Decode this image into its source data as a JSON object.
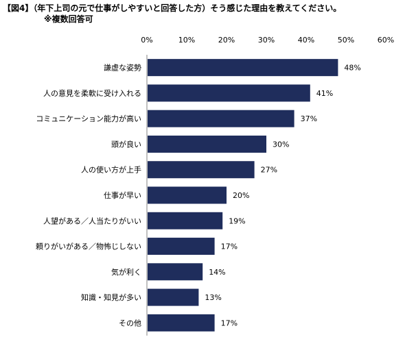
{
  "title": {
    "main": "【図4】（年下上司の元で仕事がしやすいと回答した方）そう感じた理由を教えてください。",
    "note": "※複数回答可"
  },
  "chart_data": {
    "type": "bar",
    "orientation": "horizontal",
    "categories": [
      "謙虚な姿勢",
      "人の意見を柔軟に受け入れる",
      "コミュニケーション能力が高い",
      "頭が良い",
      "人の使い方が上手",
      "仕事が早い",
      "人望がある／人当たりがいい",
      "頼りがいがある／物怖じしない",
      "気が利く",
      "知識・知見が多い",
      "その他"
    ],
    "values": [
      48,
      41,
      37,
      30,
      27,
      20,
      19,
      17,
      14,
      13,
      17
    ],
    "value_labels": [
      "48%",
      "41%",
      "37%",
      "30%",
      "27%",
      "20%",
      "19%",
      "17%",
      "14%",
      "13%",
      "17%"
    ],
    "xlim": [
      0,
      60
    ],
    "x_ticks": [
      "0%",
      "10%",
      "20%",
      "30%",
      "40%",
      "50%",
      "60%"
    ],
    "grid": false,
    "bar_color": "#1f2d5c",
    "axis_position": "top"
  }
}
